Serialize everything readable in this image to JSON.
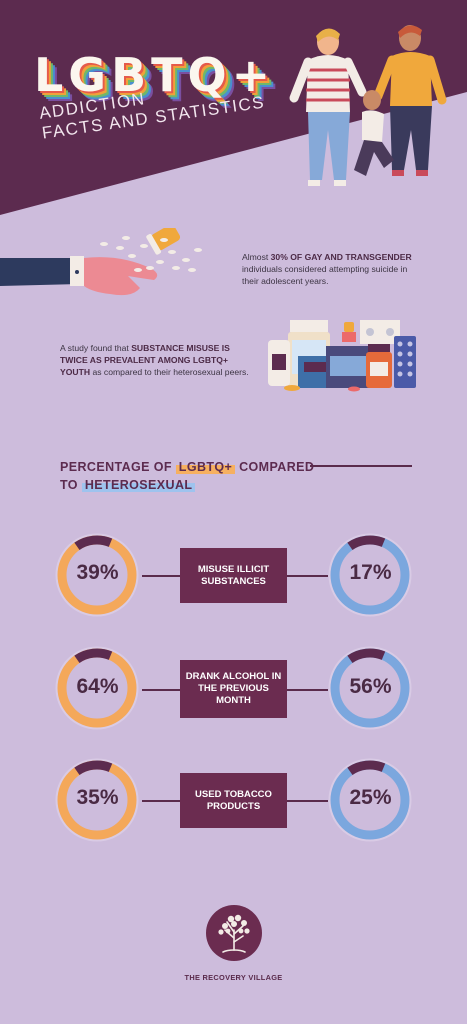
{
  "header": {
    "title": "LGBTQ+",
    "subtitle_line1": "ADDICTION",
    "subtitle_line2": "FACTS AND STATISTICS"
  },
  "stat1": {
    "pre": "Almost ",
    "bold": "30% OF GAY AND TRANSGENDER",
    "post": " individuals considered attempting suicide in their adolescent years."
  },
  "stat2": {
    "pre": "A study found that ",
    "bold": "SUBSTANCE MISUSE IS TWICE AS PREVALENT AMONG LGBTQ+ YOUTH",
    "post": " as compared to their heterosexual peers."
  },
  "comparison": {
    "heading_prefix": "PERCENTAGE OF",
    "heading_group1": "LGBTQ+",
    "heading_mid": "COMPARED",
    "heading_to": "TO",
    "heading_group2": "HETEROSEXUAL",
    "rows": [
      {
        "label": "MISUSE ILLICIT SUBSTANCES",
        "lgbtq": "39%",
        "hetero": "17%",
        "lgbtq_value": 39,
        "hetero_value": 17
      },
      {
        "label": "DRANK ALCOHOL IN THE PREVIOUS MONTH",
        "lgbtq": "64%",
        "hetero": "56%",
        "lgbtq_value": 64,
        "hetero_value": 56
      },
      {
        "label": "USED TOBACCO PRODUCTS",
        "lgbtq": "35%",
        "hetero": "25%",
        "lgbtq_value": 35,
        "hetero_value": 25
      }
    ]
  },
  "colors": {
    "background": "#cdbcdc",
    "banner": "#5c2b4f",
    "lgbtq_ring": "#f4a85a",
    "hetero_ring": "#7ba7de",
    "ring_accent": "#5c2b4f"
  },
  "footer": {
    "brand": "THE RECOVERY VILLAGE"
  }
}
